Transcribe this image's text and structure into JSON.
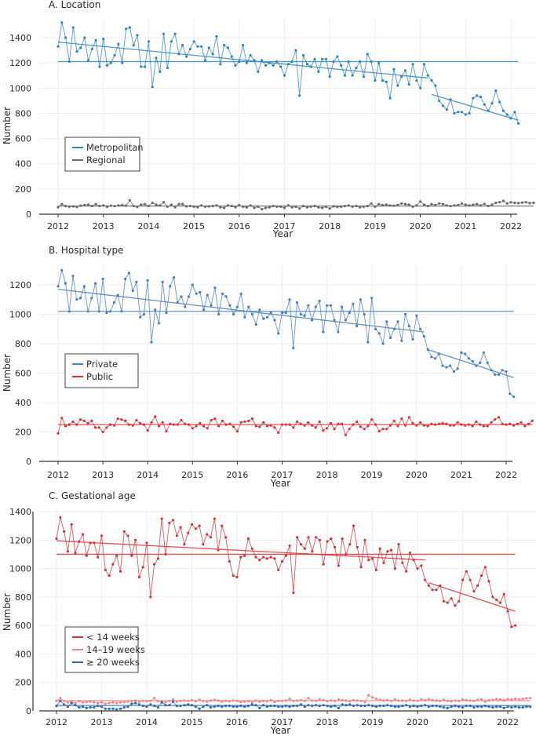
{
  "chart_data": [
    {
      "type": "line",
      "title": "A. Location",
      "xlabel": "Year",
      "ylabel": "Number",
      "xlim": [
        2012,
        2022
      ],
      "ylim": [
        0,
        1400
      ],
      "x_ticks": [
        "2012",
        "2013",
        "2014",
        "2015",
        "2016",
        "2017",
        "2018",
        "2019",
        "2020",
        "2021",
        "2022"
      ],
      "y_ticks": [
        "0",
        "200",
        "400",
        "600",
        "800",
        "1000",
        "1200",
        "1400"
      ],
      "grid": true,
      "legend": {
        "position": "middle-left",
        "entries": [
          "Metropolitan",
          "Regional"
        ]
      },
      "x_start": "2012-01",
      "x_step": "month",
      "series": [
        {
          "name": "Metropolitan",
          "color": "#2f86c1",
          "values": [
            1330,
            1520,
            1400,
            1210,
            1480,
            1290,
            1320,
            1400,
            1220,
            1310,
            1380,
            1170,
            1390,
            1180,
            1200,
            1260,
            1350,
            1200,
            1470,
            1480,
            1340,
            1420,
            1170,
            1170,
            1370,
            1010,
            1240,
            1130,
            1430,
            1160,
            1370,
            1430,
            1270,
            1340,
            1250,
            1310,
            1370,
            1330,
            1330,
            1220,
            1320,
            1270,
            1410,
            1190,
            1340,
            1320,
            1250,
            1180,
            1210,
            1340,
            1200,
            1260,
            1220,
            1130,
            1220,
            1180,
            1200,
            1180,
            1210,
            1170,
            1100,
            1190,
            1210,
            1300,
            940,
            1260,
            1190,
            1170,
            1230,
            1130,
            1230,
            1230,
            1090,
            1210,
            1250,
            1180,
            1100,
            1210,
            1100,
            1160,
            1210,
            1090,
            1270,
            1210,
            1060,
            1200,
            1060,
            1050,
            920,
            1150,
            1020,
            1090,
            1140,
            1030,
            1190,
            1060,
            1000,
            1190,
            1100,
            1060,
            1020,
            900,
            860,
            830,
            910,
            800,
            810,
            810,
            790,
            800,
            920,
            940,
            930,
            870,
            820,
            880,
            980,
            890,
            820,
            790,
            760,
            810,
            720
          ],
          "trend_pre": [
            1365,
            1080
          ],
          "trend_post": [
            950,
            745
          ],
          "mean_pre": 1210
        },
        {
          "name": "Regional",
          "color": "#6b6b6b",
          "values": [
            55,
            80,
            65,
            60,
            62,
            58,
            68,
            72,
            75,
            65,
            80,
            65,
            70,
            60,
            68,
            64,
            70,
            72,
            68,
            110,
            65,
            58,
            75,
            80,
            65,
            90,
            75,
            70,
            95,
            60,
            75,
            55,
            80,
            80,
            62,
            65,
            60,
            55,
            70,
            60,
            62,
            65,
            70,
            55,
            50,
            70,
            65,
            55,
            72,
            60,
            55,
            70,
            50,
            60,
            40,
            50,
            55,
            65,
            60,
            60,
            50,
            70,
            55,
            60,
            45,
            65,
            55,
            60,
            65,
            55,
            50,
            60,
            45,
            62,
            58,
            60,
            65,
            70,
            60,
            65,
            55,
            60,
            65,
            85,
            60,
            80,
            72,
            75,
            70,
            68,
            72,
            85,
            80,
            75,
            60,
            70,
            100,
            75,
            65,
            80,
            72,
            85,
            80,
            70,
            65,
            70,
            72,
            85,
            75,
            70,
            75,
            80,
            70,
            82,
            65,
            75,
            90,
            95,
            105,
            85,
            95,
            90,
            88,
            92,
            95,
            88,
            90
          ],
          "mean_pre": 65
        }
      ]
    },
    {
      "type": "line",
      "title": "B. Hospital type",
      "xlabel": "Year",
      "ylabel": "Number",
      "xlim": [
        2012,
        2022
      ],
      "ylim": [
        0,
        1200
      ],
      "x_ticks": [
        "2012",
        "2013",
        "2014",
        "2015",
        "2016",
        "2017",
        "2018",
        "2019",
        "2020",
        "2021",
        "2022"
      ],
      "y_ticks": [
        "0",
        "200",
        "400",
        "600",
        "800",
        "1000",
        "1200"
      ],
      "grid": true,
      "legend": {
        "position": "middle-left",
        "entries": [
          "Private",
          "Public"
        ]
      },
      "x_start": "2012-01",
      "x_step": "month",
      "series": [
        {
          "name": "Private",
          "color": "#4a7fba",
          "values": [
            1190,
            1300,
            1210,
            1020,
            1260,
            1100,
            1110,
            1190,
            1020,
            1110,
            1210,
            1020,
            1240,
            1010,
            1020,
            1080,
            1130,
            1020,
            1240,
            1280,
            1160,
            1220,
            980,
            1000,
            1230,
            810,
            1030,
            940,
            1220,
            1010,
            1190,
            1250,
            1080,
            1120,
            1050,
            1120,
            1200,
            1140,
            1150,
            1030,
            1130,
            1060,
            1180,
            1000,
            1140,
            1120,
            1060,
            1000,
            1050,
            1140,
            980,
            1050,
            1000,
            930,
            1030,
            970,
            980,
            1010,
            960,
            870,
            1010,
            1010,
            1100,
            770,
            1080,
            1000,
            990,
            1060,
            960,
            1050,
            1090,
            880,
            1060,
            1060,
            960,
            880,
            1050,
            960,
            1010,
            1070,
            920,
            1100,
            1000,
            810,
            1110,
            900,
            870,
            800,
            950,
            840,
            900,
            950,
            820,
            1000,
            920,
            830,
            990,
            900,
            850,
            760,
            710,
            700,
            730,
            650,
            640,
            650,
            610,
            630,
            740,
            730,
            700,
            680,
            650,
            670,
            740,
            670,
            620,
            590,
            590,
            620,
            610,
            460,
            440
          ],
          "trend_pre": [
            1170,
            880
          ],
          "trend_post": [
            760,
            570
          ],
          "mean_pre": 1020
        },
        {
          "name": "Public",
          "color": "#d8343a",
          "values": [
            190,
            295,
            240,
            250,
            270,
            250,
            285,
            275,
            260,
            275,
            230,
            230,
            200,
            230,
            250,
            245,
            290,
            285,
            275,
            250,
            245,
            280,
            260,
            250,
            210,
            265,
            305,
            240,
            265,
            205,
            255,
            250,
            250,
            280,
            255,
            250,
            225,
            240,
            260,
            240,
            225,
            280,
            290,
            240,
            275,
            250,
            255,
            235,
            205,
            265,
            270,
            275,
            290,
            240,
            235,
            265,
            240,
            245,
            230,
            195,
            250,
            250,
            250,
            230,
            270,
            255,
            245,
            265,
            245,
            230,
            270,
            210,
            225,
            260,
            220,
            255,
            255,
            180,
            220,
            250,
            270,
            235,
            220,
            240,
            285,
            250,
            205,
            220,
            220,
            245,
            275,
            240,
            290,
            245,
            300,
            260,
            245,
            265,
            245,
            240,
            255,
            250,
            255,
            260,
            255,
            245,
            245,
            265,
            250,
            245,
            250,
            240,
            270,
            250,
            240,
            240,
            265,
            285,
            300,
            255,
            250,
            255,
            245,
            255,
            265,
            240,
            255,
            275
          ],
          "mean_pre": 250
        }
      ]
    },
    {
      "type": "line",
      "title": "C. Gestational age",
      "xlabel": "Year",
      "ylabel": "Number",
      "xlim": [
        2012,
        2022
      ],
      "ylim": [
        0,
        1400
      ],
      "x_ticks": [
        "2012",
        "2013",
        "2014",
        "2015",
        "2016",
        "2017",
        "2018",
        "2019",
        "2020",
        "2021",
        "2022"
      ],
      "y_ticks": [
        "0",
        "200",
        "400",
        "600",
        "800",
        "1000",
        "1200",
        "1400"
      ],
      "grid": true,
      "legend": {
        "position": "middle-left",
        "entries": [
          "< 14 weeks",
          "14–19 weeks",
          "≥ 20 weeks"
        ]
      },
      "x_start": "2012-01",
      "x_step": "month",
      "series": [
        {
          "name": "< 14 weeks",
          "color": "#d8343a",
          "values": [
            1210,
            1360,
            1260,
            1120,
            1310,
            1110,
            1190,
            1240,
            1090,
            1180,
            1180,
            1080,
            1230,
            990,
            950,
            1030,
            1090,
            980,
            1260,
            1230,
            1090,
            1200,
            940,
            1010,
            1180,
            800,
            1030,
            1070,
            1350,
            1100,
            1320,
            1340,
            1230,
            1290,
            1170,
            1250,
            1310,
            1280,
            1300,
            1170,
            1240,
            1220,
            1350,
            1130,
            1300,
            1220,
            1050,
            950,
            940,
            1080,
            1090,
            1210,
            1140,
            1080,
            1060,
            1080,
            1070,
            1080,
            1070,
            990,
            1050,
            1090,
            1160,
            830,
            1220,
            1170,
            1140,
            1220,
            1120,
            1220,
            1200,
            1030,
            1190,
            1210,
            1150,
            1020,
            1210,
            1100,
            1170,
            1300,
            1150,
            1010,
            1200,
            1060,
            1070,
            990,
            1140,
            1040,
            1120,
            1130,
            1000,
            1170,
            1040,
            980,
            1110,
            1060,
            1000,
            1020,
            920,
            880,
            850,
            850,
            880,
            770,
            760,
            790,
            740,
            770,
            920,
            980,
            920,
            840,
            880,
            950,
            1010,
            910,
            800,
            780,
            760,
            820,
            700,
            590,
            600
          ],
          "trend_pre": [
            1195,
            1060
          ],
          "trend_post": [
            900,
            700
          ],
          "mean_pre": 1100
        },
        {
          "name": "14–19 weeks",
          "color": "#ee8a8e",
          "values": [
            70,
            90,
            70,
            60,
            65,
            55,
            70,
            60,
            62,
            65,
            60,
            55,
            60,
            50,
            55,
            60,
            55,
            60,
            62,
            65,
            70,
            72,
            65,
            70,
            68,
            70,
            90,
            68,
            65,
            60,
            70,
            80,
            65,
            70,
            72,
            70,
            75,
            68,
            78,
            70,
            65,
            72,
            78,
            72,
            65,
            70,
            68,
            72,
            70,
            62,
            65,
            70,
            60,
            72,
            65,
            70,
            68,
            75,
            62,
            70,
            70,
            72,
            85,
            70,
            72,
            75,
            70,
            90,
            72,
            70,
            80,
            75,
            68,
            72,
            70,
            80,
            75,
            72,
            68,
            75,
            72,
            70,
            62,
            110,
            95,
            85,
            78,
            72,
            75,
            70,
            80,
            72,
            72,
            70,
            78,
            72,
            70,
            80,
            75,
            82,
            75,
            72,
            70,
            78,
            70,
            68,
            72,
            70,
            80,
            75,
            72,
            70,
            78,
            80,
            65,
            75,
            78,
            82,
            80,
            75,
            82,
            80,
            85,
            80,
            85,
            88,
            90
          ],
          "mean_pre": 72
        },
        {
          "name": "≥ 20 weeks",
          "color": "#2f6db0",
          "values": [
            35,
            70,
            45,
            30,
            55,
            40,
            25,
            30,
            20,
            25,
            25,
            35,
            30,
            15,
            15,
            15,
            10,
            15,
            25,
            30,
            50,
            55,
            45,
            35,
            30,
            45,
            35,
            25,
            60,
            40,
            40,
            65,
            35,
            35,
            40,
            45,
            40,
            30,
            15,
            30,
            40,
            25,
            30,
            35,
            30,
            35,
            35,
            30,
            30,
            35,
            30,
            35,
            45,
            40,
            20,
            40,
            30,
            35,
            35,
            30,
            30,
            35,
            30,
            35,
            35,
            45,
            30,
            40,
            35,
            40,
            35,
            40,
            35,
            30,
            35,
            20,
            45,
            40,
            45,
            35,
            40,
            35,
            35,
            40,
            35,
            30,
            35,
            35,
            40,
            35,
            30,
            30,
            35,
            40,
            30,
            35,
            30,
            35,
            40,
            30,
            35,
            35,
            30,
            25,
            20,
            30,
            35,
            30,
            25,
            35,
            35,
            25,
            30,
            30,
            35,
            30,
            25,
            30,
            30,
            20,
            30,
            25,
            30,
            25,
            25,
            30,
            30
          ],
          "mean_pre": 38
        }
      ]
    }
  ]
}
